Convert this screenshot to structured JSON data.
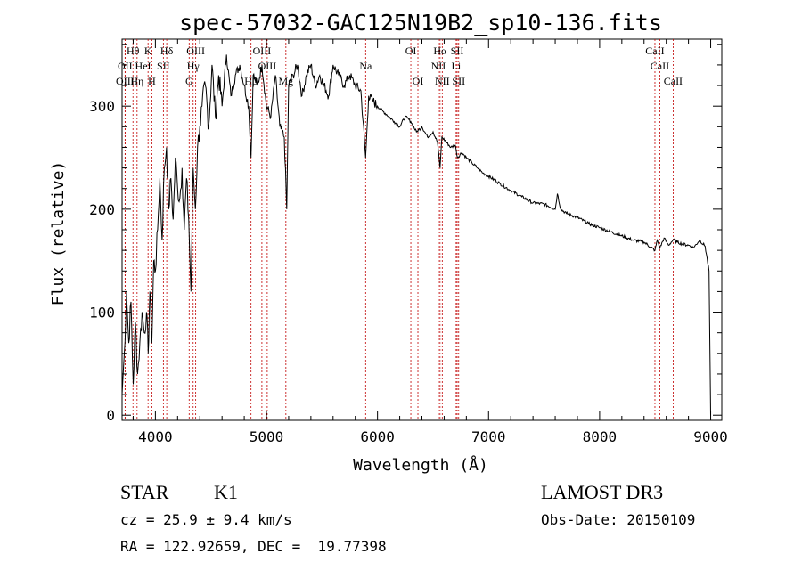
{
  "chart_data": {
    "type": "line",
    "title": "spec-57032-GAC125N19B2_sp10-136.fits",
    "xlabel": "Wavelength (Å)",
    "ylabel": "Flux (relative)",
    "xlim": [
      3700,
      9100
    ],
    "ylim": [
      -5,
      365
    ],
    "xticks": [
      4000,
      5000,
      6000,
      7000,
      8000,
      9000
    ],
    "yticks": [
      0,
      100,
      200,
      300
    ],
    "x_minor_step": 200,
    "y_minor_step": 20,
    "series": [
      {
        "name": "spectrum",
        "color": "#000000",
        "x": [
          3700,
          3720,
          3740,
          3760,
          3780,
          3800,
          3820,
          3840,
          3860,
          3880,
          3900,
          3920,
          3935,
          3950,
          3968,
          3985,
          4000,
          4020,
          4040,
          4060,
          4080,
          4100,
          4120,
          4140,
          4160,
          4180,
          4200,
          4220,
          4240,
          4260,
          4280,
          4300,
          4320,
          4340,
          4360,
          4380,
          4400,
          4420,
          4450,
          4480,
          4510,
          4540,
          4570,
          4600,
          4640,
          4680,
          4720,
          4760,
          4800,
          4840,
          4861,
          4880,
          4920,
          4960,
          5000,
          5040,
          5080,
          5120,
          5160,
          5183,
          5200,
          5240,
          5280,
          5320,
          5360,
          5400,
          5440,
          5480,
          5520,
          5560,
          5600,
          5650,
          5700,
          5750,
          5800,
          5850,
          5893,
          5920,
          5960,
          6000,
          6050,
          6100,
          6150,
          6200,
          6250,
          6300,
          6350,
          6400,
          6450,
          6500,
          6540,
          6563,
          6580,
          6620,
          6660,
          6700,
          6720,
          6760,
          6800,
          6850,
          6900,
          6950,
          7000,
          7100,
          7200,
          7300,
          7400,
          7500,
          7600,
          7620,
          7650,
          7700,
          7800,
          7900,
          8000,
          8100,
          8200,
          8300,
          8400,
          8498,
          8520,
          8542,
          8580,
          8620,
          8662,
          8700,
          8750,
          8800,
          8850,
          8900,
          8950,
          8985,
          9000
        ],
        "y": [
          20,
          60,
          120,
          70,
          110,
          30,
          90,
          40,
          70,
          100,
          80,
          100,
          60,
          120,
          70,
          150,
          140,
          180,
          230,
          170,
          240,
          260,
          200,
          230,
          190,
          250,
          220,
          210,
          240,
          180,
          230,
          190,
          120,
          240,
          200,
          260,
          280,
          300,
          320,
          280,
          340,
          290,
          330,
          300,
          350,
          310,
          330,
          340,
          320,
          300,
          250,
          330,
          320,
          340,
          300,
          290,
          330,
          280,
          270,
          200,
          320,
          330,
          340,
          310,
          330,
          340,
          320,
          330,
          320,
          310,
          340,
          330,
          320,
          330,
          320,
          315,
          250,
          310,
          305,
          300,
          295,
          290,
          285,
          280,
          290,
          285,
          275,
          280,
          270,
          275,
          265,
          240,
          270,
          265,
          260,
          262,
          250,
          255,
          250,
          245,
          240,
          235,
          232,
          225,
          218,
          212,
          206,
          205,
          200,
          215,
          200,
          196,
          192,
          186,
          182,
          178,
          174,
          170,
          168,
          160,
          170,
          162,
          172,
          165,
          170,
          168,
          166,
          165,
          163,
          170,
          164,
          140,
          0
        ]
      }
    ],
    "lines": [
      {
        "label": "Hθ",
        "x": 3798,
        "row": 1
      },
      {
        "label": "K",
        "x": 3934,
        "row": 1
      },
      {
        "label": "Hδ",
        "x": 4102,
        "row": 1
      },
      {
        "label": "OIII",
        "x": 4363,
        "row": 1
      },
      {
        "label": "OIII",
        "x": 4959,
        "row": 1
      },
      {
        "label": "OI",
        "x": 6300,
        "row": 1
      },
      {
        "label": "Hα",
        "x": 6563,
        "row": 1
      },
      {
        "label": "SII",
        "x": 6717,
        "row": 1
      },
      {
        "label": "CaII",
        "x": 8498,
        "row": 1
      },
      {
        "label": "OII",
        "x": 3727,
        "row": 2
      },
      {
        "label": "HeI",
        "x": 3889,
        "row": 2
      },
      {
        "label": "SII",
        "x": 4072,
        "row": 2
      },
      {
        "label": "Hγ",
        "x": 4340,
        "row": 2
      },
      {
        "label": "OIII",
        "x": 5007,
        "row": 2
      },
      {
        "label": "Na",
        "x": 5893,
        "row": 2
      },
      {
        "label": "NII",
        "x": 6548,
        "row": 2
      },
      {
        "label": "Li",
        "x": 6708,
        "row": 2
      },
      {
        "label": "CaII",
        "x": 8542,
        "row": 2
      },
      {
        "label": "OIII",
        "x": 3727,
        "row": 3
      },
      {
        "label": "Hη",
        "x": 3835,
        "row": 3
      },
      {
        "label": "H",
        "x": 3968,
        "row": 3
      },
      {
        "label": "G",
        "x": 4304,
        "row": 3
      },
      {
        "label": "Hβ",
        "x": 4861,
        "row": 3
      },
      {
        "label": "Mg",
        "x": 5175,
        "row": 3
      },
      {
        "label": "OI",
        "x": 6364,
        "row": 3
      },
      {
        "label": "NII",
        "x": 6583,
        "row": 3
      },
      {
        "label": "SII",
        "x": 6731,
        "row": 3
      },
      {
        "label": "CaII",
        "x": 8662,
        "row": 3
      }
    ]
  },
  "info": {
    "class": "STAR",
    "subclass": "K1",
    "survey": "LAMOST DR3",
    "cz": "cz = 25.9 ± 9.4 km/s",
    "obs_date": "Obs-Date: 20150109",
    "coords": "RA = 122.92659, DEC =  19.77398"
  }
}
